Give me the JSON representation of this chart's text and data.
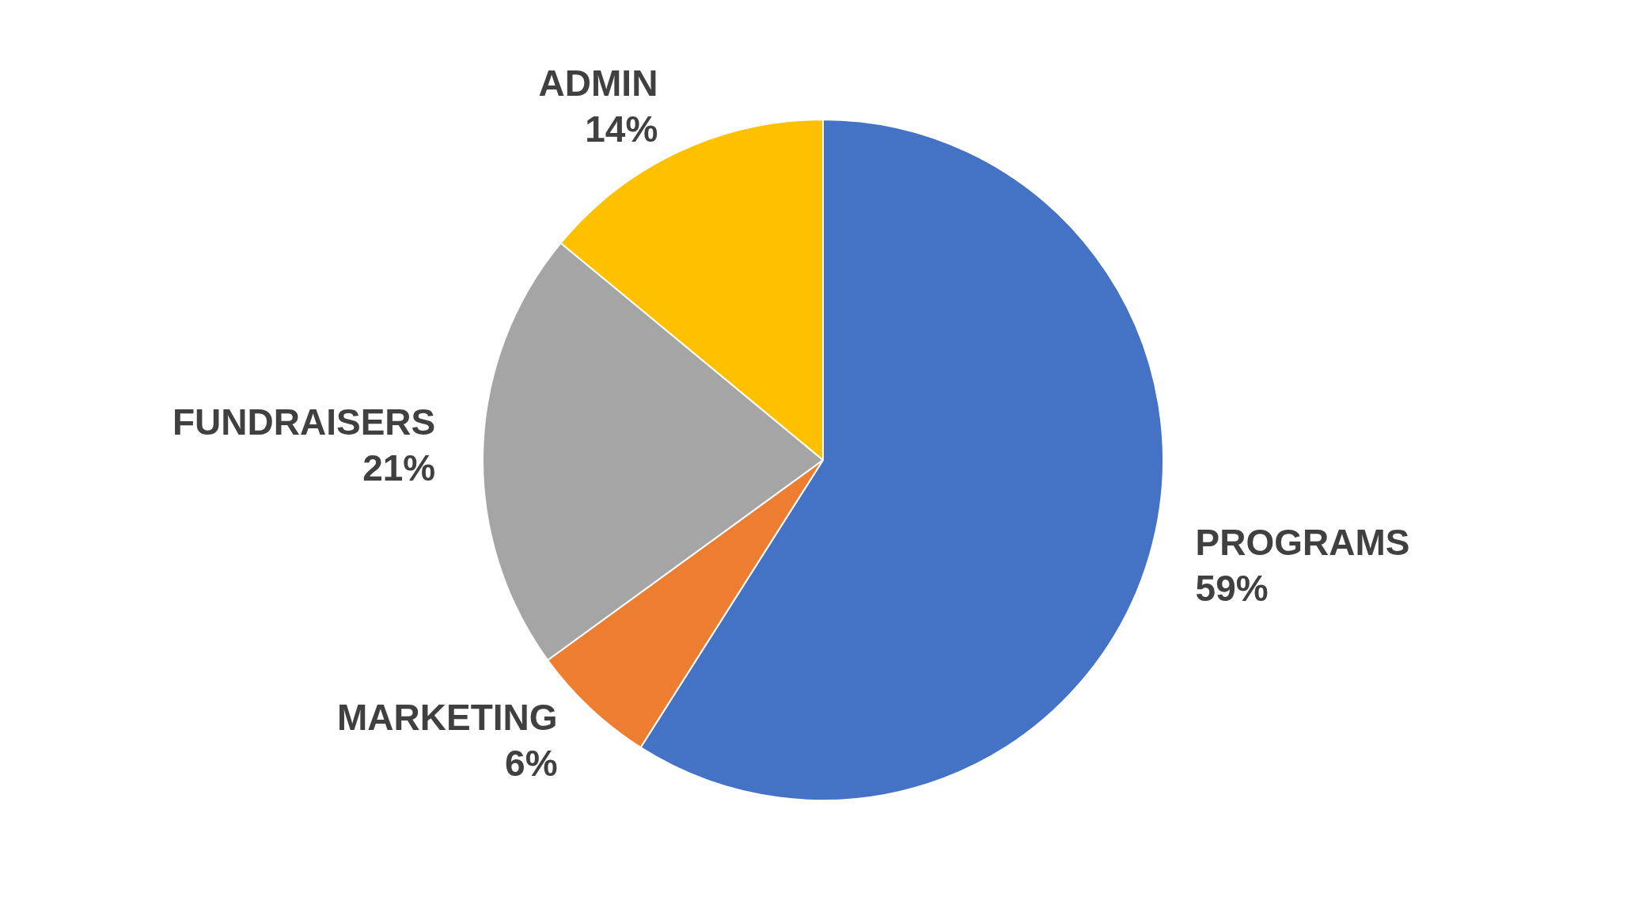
{
  "chart_data": {
    "type": "pie",
    "categories": [
      "PROGRAMS",
      "MARKETING",
      "FUNDRAISERS",
      "ADMIN"
    ],
    "values": [
      59,
      6,
      21,
      14
    ],
    "value_labels": [
      "59%",
      "6%",
      "21%",
      "14%"
    ],
    "colors": [
      "#4472c4",
      "#ed7d31",
      "#a5a5a5",
      "#ffc000"
    ],
    "legend": false
  }
}
